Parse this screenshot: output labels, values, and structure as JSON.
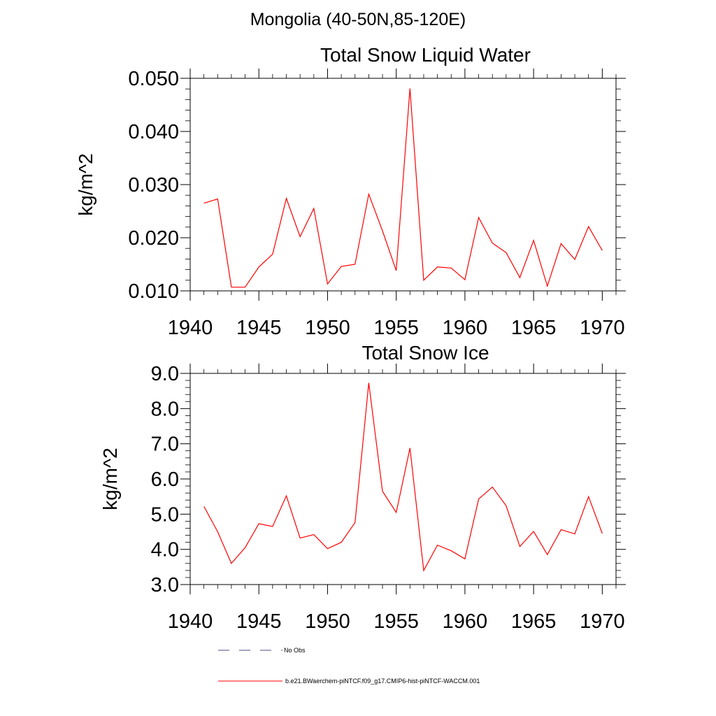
{
  "page": {
    "title": "Mongolia (40-50N,85-120E)"
  },
  "chart_data": [
    {
      "type": "line",
      "title": "Total Snow Liquid Water",
      "xlabel": "",
      "ylabel": "kg/m^2",
      "xlim": [
        1940,
        1971
      ],
      "ylim": [
        0.01,
        0.05
      ],
      "xticks": [
        1940,
        1945,
        1950,
        1955,
        1960,
        1965,
        1970
      ],
      "yticks": [
        0.01,
        0.02,
        0.03,
        0.04,
        0.05
      ],
      "ytick_labels": [
        "0.010",
        "0.020",
        "0.030",
        "0.040",
        "0.050"
      ],
      "grid": false,
      "series": [
        {
          "name": "b.e21.BWaerchem-piNTCF.f09_g17.CMIP6-hist-piNTCF-WACCM.001",
          "color": "#ff0000",
          "x": [
            1941,
            1942,
            1943,
            1944,
            1945,
            1946,
            1947,
            1948,
            1949,
            1950,
            1951,
            1952,
            1953,
            1954,
            1955,
            1956,
            1957,
            1958,
            1959,
            1960,
            1961,
            1962,
            1963,
            1964,
            1965,
            1966,
            1967,
            1968,
            1969,
            1970
          ],
          "values": [
            0.0265,
            0.0273,
            0.0107,
            0.0107,
            0.0145,
            0.0169,
            0.0274,
            0.0202,
            0.0255,
            0.0113,
            0.0146,
            0.015,
            0.0282,
            0.0213,
            0.0138,
            0.0481,
            0.012,
            0.0145,
            0.0143,
            0.0121,
            0.0238,
            0.019,
            0.0172,
            0.0125,
            0.0195,
            0.0109,
            0.0189,
            0.0159,
            0.0221,
            0.0176
          ]
        }
      ]
    },
    {
      "type": "line",
      "title": "Total Snow Ice",
      "xlabel": "",
      "ylabel": "kg/m^2",
      "xlim": [
        1940,
        1971
      ],
      "ylim": [
        3.0,
        9.0
      ],
      "xticks": [
        1940,
        1945,
        1950,
        1955,
        1960,
        1965,
        1970
      ],
      "yticks": [
        3.0,
        4.0,
        5.0,
        6.0,
        7.0,
        8.0,
        9.0
      ],
      "ytick_labels": [
        "3.0",
        "4.0",
        "5.0",
        "6.0",
        "7.0",
        "8.0",
        "9.0"
      ],
      "grid": false,
      "series": [
        {
          "name": "b.e21.BWaerchem-piNTCF.f09_g17.CMIP6-hist-piNTCF-WACCM.001",
          "color": "#ff0000",
          "x": [
            1941,
            1942,
            1943,
            1944,
            1945,
            1946,
            1947,
            1948,
            1949,
            1950,
            1951,
            1952,
            1953,
            1954,
            1955,
            1956,
            1957,
            1958,
            1959,
            1960,
            1961,
            1962,
            1963,
            1964,
            1965,
            1966,
            1967,
            1968,
            1969,
            1970
          ],
          "values": [
            5.22,
            4.5,
            3.6,
            4.05,
            4.73,
            4.65,
            5.52,
            4.32,
            4.42,
            4.02,
            4.2,
            4.76,
            8.73,
            5.65,
            5.05,
            6.88,
            3.4,
            4.12,
            3.96,
            3.73,
            5.43,
            5.77,
            5.24,
            4.08,
            4.51,
            3.85,
            4.56,
            4.44,
            5.5,
            4.45
          ]
        }
      ]
    }
  ],
  "legend": {
    "placement": "bottom",
    "items": [
      {
        "label": "No Obs",
        "style": "dashed",
        "color": "#4a4a8a"
      },
      {
        "label": "b.e21.BWaerchem-piNTCF.f09_g17.CMIP6-hist-piNTCF-WACCM.001",
        "style": "solid",
        "color": "#ff0000"
      }
    ]
  }
}
